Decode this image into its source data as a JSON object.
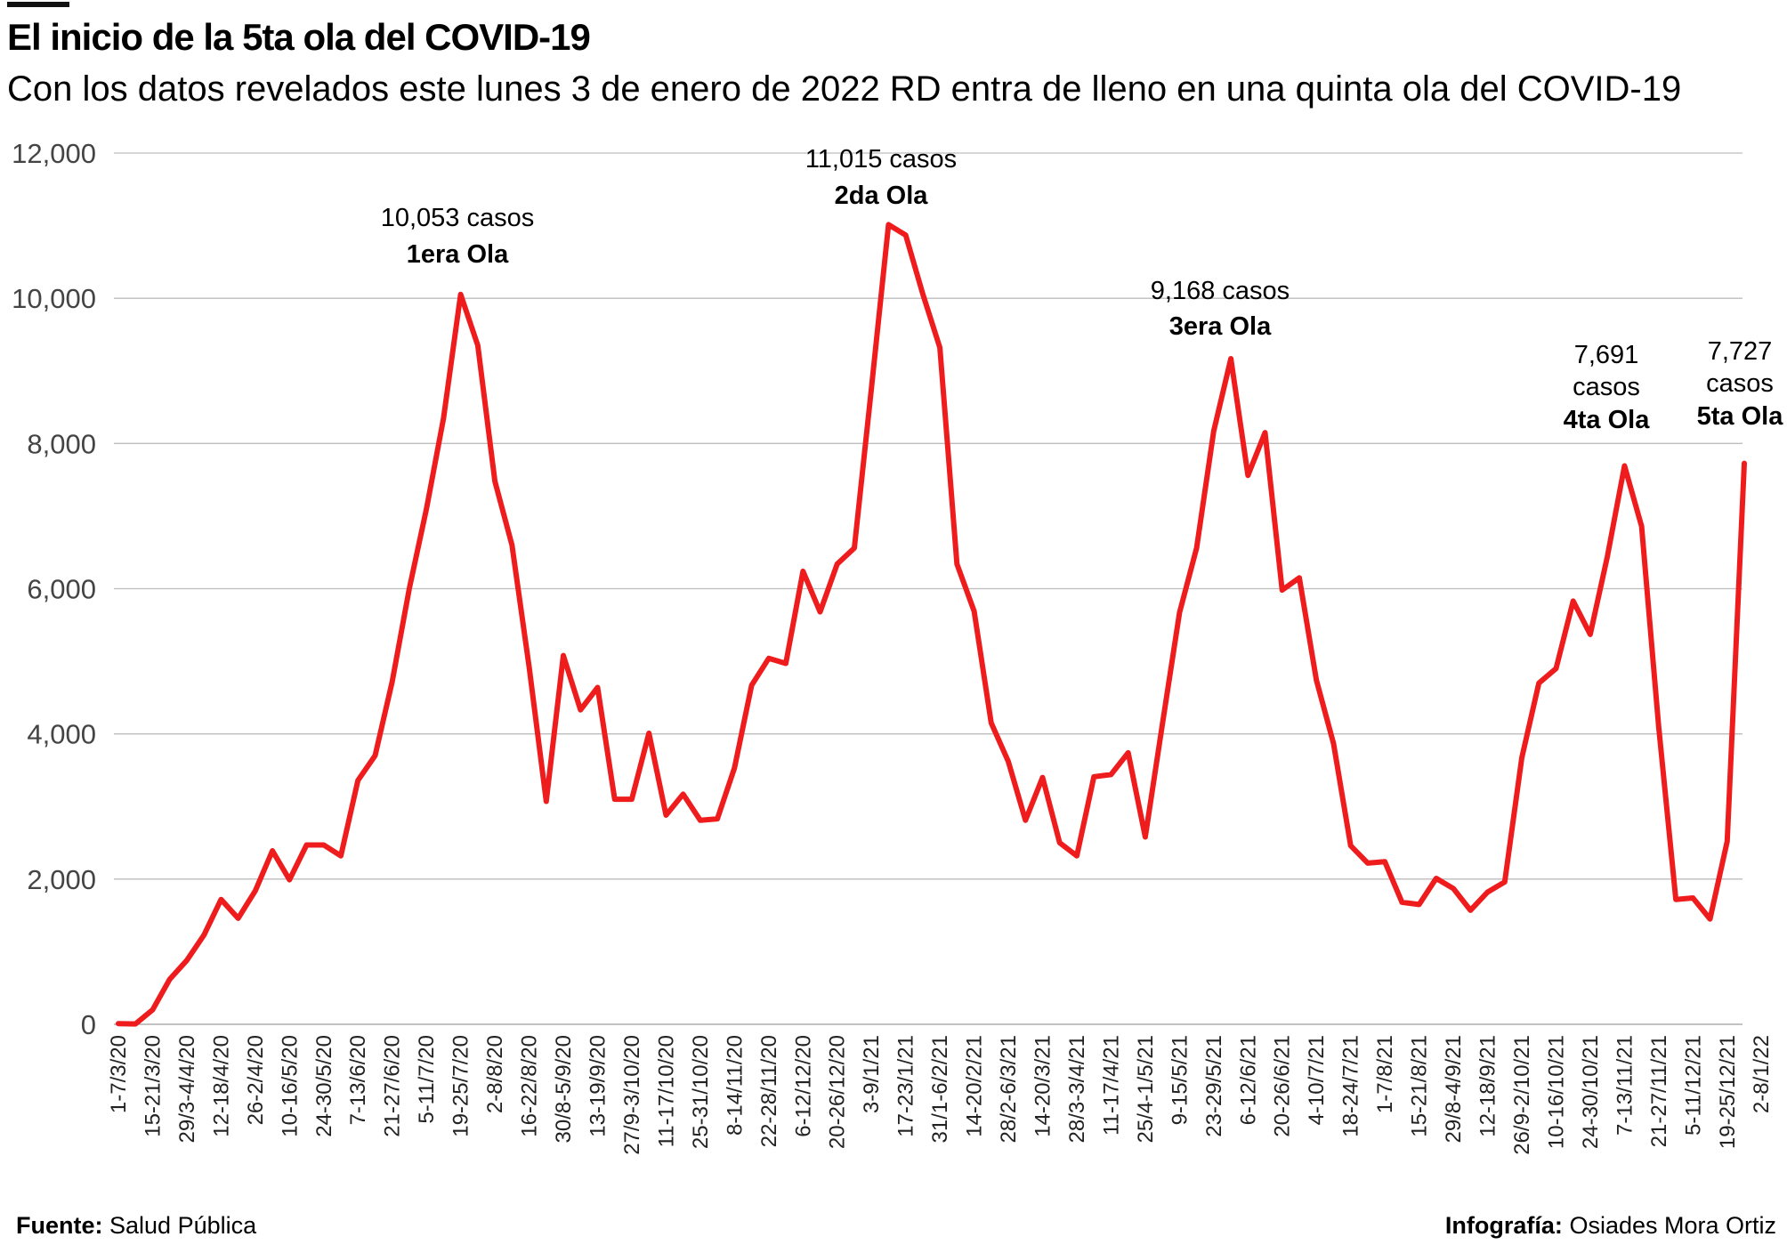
{
  "header": {
    "title": "El inicio de la 5ta ola del COVID-19",
    "subtitle": "Con los datos revelados este lunes 3 de enero de 2022 RD entra de lleno en una quinta ola del COVID-19"
  },
  "footer": {
    "source_label": "Fuente:",
    "source_value": "Salud Pública",
    "credit_label": "Infografía:",
    "credit_value": "Osiades Mora Ortiz"
  },
  "colors": {
    "line": "#ee1c1c",
    "grid": "#bdbdbd",
    "text": "#000000",
    "tick": "#444444"
  },
  "chart_data": {
    "type": "line",
    "title": "El inicio de la 5ta ola del COVID-19",
    "xlabel": "",
    "ylabel": "",
    "ylim": [
      0,
      12000
    ],
    "yticks": [
      0,
      2000,
      4000,
      6000,
      8000,
      10000,
      12000
    ],
    "ytick_labels": [
      "0",
      "2,000",
      "4,000",
      "6,000",
      "8,000",
      "10,000",
      "12,000"
    ],
    "grid": true,
    "x_tick_labels": [
      "1-7/3/20",
      "15-21/3/20",
      "29/3-4/4/20",
      "12-18/4/20",
      "26-2/4/20",
      "10-16/5/20",
      "24-30/5/20",
      "7-13/6/20",
      "21-27/6/20",
      "5-11/7/20",
      "19-25/7/20",
      "2-8/8/20",
      "16-22/8/20",
      "30/8-5/9/20",
      "13-19/9/20",
      "27/9-3/10/20",
      "11-17/10/20",
      "25-31/10/20",
      "8-14/11/20",
      "22-28/11/20",
      "6-12/12/20",
      "20-26/12/20",
      "3-9/1/21",
      "17-23/1/21",
      "31/1-6/2/21",
      "14-20/2/21",
      "28/2-6/3/21",
      "14-20/3/21",
      "28/3-3/4/21",
      "11-17/4/21",
      "25/4-1/5/21",
      "9-15/5/21",
      "23-29/5/21",
      "6-12/6/21",
      "20-26/6/21",
      "4-10/7/21",
      "18-24/7/21",
      "1-7/8/21",
      "15-21/8/21",
      "29/8-4/9/21",
      "12-18/9/21",
      "26/9-2/10/21",
      "10-16/10/21",
      "24-30/10/21",
      "7-13/11/21",
      "21-27/11/21",
      "5-11/12/21",
      "19-25/12/21",
      "2-8/1/22"
    ],
    "series": [
      {
        "values": [
          10,
          5,
          200,
          620,
          880,
          1230,
          1720,
          1460,
          1840,
          2390,
          1990,
          2470,
          2470,
          2320,
          3360,
          3700,
          4720,
          6000,
          7100,
          8350,
          10053,
          9350,
          7480,
          6600,
          4920,
          3070,
          5080,
          4330,
          4640,
          3100,
          3100,
          4010,
          2880,
          3170,
          2810,
          2830,
          3530,
          4670,
          5040,
          4970,
          6240,
          5680,
          6340,
          6560,
          8760,
          11015,
          10870,
          10060,
          9320,
          6340,
          5690,
          4150,
          3620,
          2810,
          3400,
          2500,
          2320,
          3410,
          3440,
          3740,
          2580,
          4130,
          5670,
          6560,
          8170,
          9168,
          7560,
          8150,
          5980,
          6150,
          4740,
          3870,
          2460,
          2220,
          2240,
          1680,
          1650,
          2010,
          1870,
          1570,
          1820,
          1960,
          3670,
          4700,
          4900,
          5830,
          5370,
          6440,
          7691,
          6860,
          4100,
          1720,
          1740,
          1450,
          2520,
          7727
        ]
      }
    ],
    "annotations": [
      {
        "index": 20,
        "value_text": "10,053 casos",
        "label": "1era Ola"
      },
      {
        "index": 45,
        "value_text": "11,015 casos",
        "label": "2da Ola"
      },
      {
        "index": 65,
        "value_text": "9,168 casos",
        "label": "3era Ola"
      },
      {
        "index": 88,
        "value_text": "7,691",
        "value_text2": "casos",
        "label": "4ta Ola"
      },
      {
        "index": 95,
        "value_text": "7,727",
        "value_text2": "casos",
        "label": "5ta Ola"
      }
    ]
  }
}
